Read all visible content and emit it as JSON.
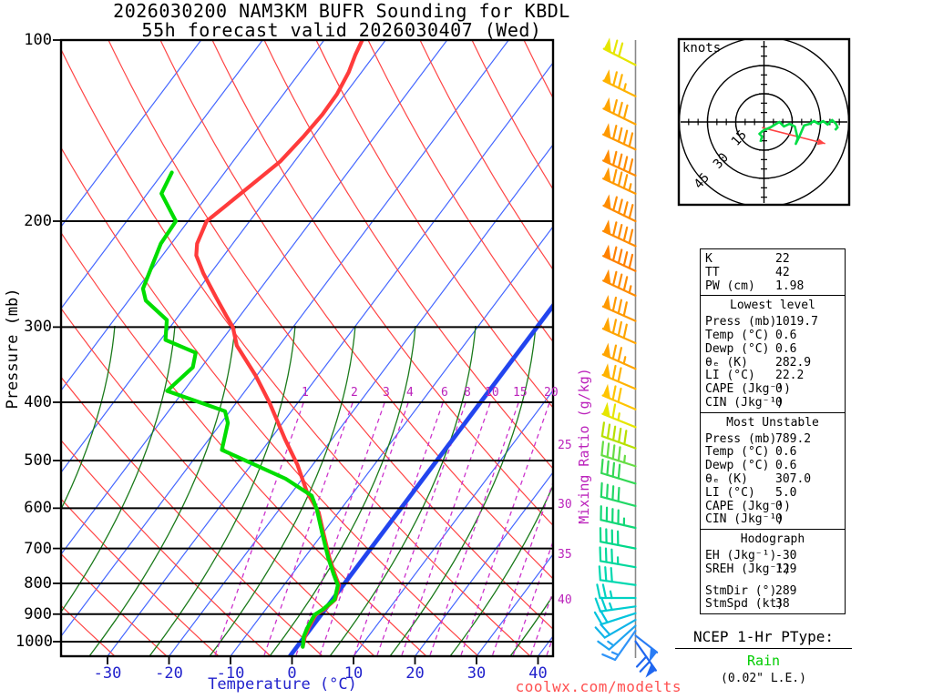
{
  "title": {
    "line1": "2026030200 NAM3KM BUFR Sounding for KBDL",
    "line2": "55h forecast valid 2026030407 (Wed)"
  },
  "watermark": "coolwx.com/modelts",
  "axes": {
    "pressure_label": "Pressure (mb)",
    "pressure_ticks": [
      100,
      200,
      300,
      400,
      500,
      600,
      700,
      800,
      900,
      1000
    ],
    "temp_label": "Temperature (°C)",
    "temp_ticks": [
      -30,
      -20,
      -10,
      0,
      10,
      20,
      30,
      40
    ],
    "mixing_label": "Mixing Ratio (g/kg)",
    "mixing_ticks_top": [
      1,
      2,
      3,
      4,
      6,
      8,
      10,
      15,
      20
    ],
    "mixing_ticks_right": [
      25,
      30,
      35,
      40
    ]
  },
  "colors": {
    "isotherm": "#4466ff",
    "isotherm_zero": "#2244ee",
    "dry_adiabat": "#ff4444",
    "moist_adiabat": "#1a7a1a",
    "mixing_ratio": "#cc33cc",
    "pressure_line": "#000000",
    "temperature_trace": "#ff3b3b",
    "dewpoint_trace": "#00dd00",
    "barb_staff": "#888888",
    "hodograph_trace": "#00dd44",
    "storm_motion_arrow": "#ff4444",
    "axis_text_blue": "#2222cc",
    "magenta_text": "#bb22bb",
    "watermark_red": "#ff5050",
    "ptype_green": "#00cc00"
  },
  "chart_data": {
    "type": "line",
    "variant": "skew-t-log-p sounding",
    "pressure_range_mb": [
      100,
      1050
    ],
    "temperature_range_c": [
      -30,
      40
    ],
    "series": [
      {
        "name": "temperature",
        "units": [
          "mb",
          "C"
        ],
        "points": [
          [
            100,
            -63.8
          ],
          [
            106,
            -63.1
          ],
          [
            113,
            -62.1
          ],
          [
            123,
            -61.3
          ],
          [
            133,
            -61.2
          ],
          [
            145,
            -61.6
          ],
          [
            159,
            -62.3
          ],
          [
            172,
            -63.9
          ],
          [
            189,
            -65.8
          ],
          [
            200,
            -67.0
          ],
          [
            218,
            -65.8
          ],
          [
            228,
            -64.5
          ],
          [
            244,
            -61.2
          ],
          [
            268,
            -56.1
          ],
          [
            287,
            -52.3
          ],
          [
            300,
            -49.8
          ],
          [
            322,
            -46.9
          ],
          [
            361,
            -40.2
          ],
          [
            400,
            -34.7
          ],
          [
            461,
            -27.6
          ],
          [
            508,
            -22.5
          ],
          [
            563,
            -17.7
          ],
          [
            610,
            -13.2
          ],
          [
            662,
            -9.8
          ],
          [
            726,
            -5.9
          ],
          [
            775,
            -2.9
          ],
          [
            806,
            -1.0
          ],
          [
            851,
            0.1
          ],
          [
            884,
            -0.5
          ],
          [
            902,
            -1.2
          ],
          [
            946,
            -0.8
          ],
          [
            981,
            -0.3
          ],
          [
            1019.7,
            0.6
          ]
        ]
      },
      {
        "name": "dewpoint",
        "units": [
          "mb",
          "C"
        ],
        "points": [
          [
            166,
            -78.6
          ],
          [
            180,
            -77.7
          ],
          [
            200,
            -72.0
          ],
          [
            218,
            -71.7
          ],
          [
            259,
            -69.1
          ],
          [
            271,
            -67.2
          ],
          [
            292,
            -61.4
          ],
          [
            315,
            -59.2
          ],
          [
            331,
            -52.7
          ],
          [
            350,
            -51.4
          ],
          [
            383,
            -52.7
          ],
          [
            414,
            -40.8
          ],
          [
            433,
            -38.9
          ],
          [
            480,
            -36.6
          ],
          [
            503,
            -30.7
          ],
          [
            536,
            -22.7
          ],
          [
            572,
            -16.4
          ],
          [
            604,
            -13.8
          ],
          [
            610,
            -13.4
          ],
          [
            662,
            -10.0
          ],
          [
            726,
            -6.1
          ],
          [
            775,
            -3.1
          ],
          [
            806,
            -1.2
          ],
          [
            851,
            0.0
          ],
          [
            884,
            -0.7
          ],
          [
            902,
            -1.4
          ],
          [
            946,
            -1.0
          ],
          [
            981,
            -0.5
          ],
          [
            1019.7,
            0.6
          ]
        ]
      }
    ],
    "wind_barbs": [
      {
        "p": 110,
        "ang": 207,
        "pen": 1,
        "full": 2,
        "half": 0,
        "color": "#e6e600"
      },
      {
        "p": 124,
        "ang": 206,
        "pen": 1,
        "full": 2,
        "half": 1,
        "color": "#ffb300"
      },
      {
        "p": 138,
        "ang": 206,
        "pen": 1,
        "full": 3,
        "half": 0,
        "color": "#ffa500"
      },
      {
        "p": 152,
        "ang": 205,
        "pen": 1,
        "full": 4,
        "half": 0,
        "color": "#ff9900"
      },
      {
        "p": 168,
        "ang": 205,
        "pen": 1,
        "full": 4,
        "half": 0,
        "color": "#ff8c00"
      },
      {
        "p": 180,
        "ang": 205,
        "pen": 1,
        "full": 3,
        "half": 1,
        "color": "#ff9900"
      },
      {
        "p": 200,
        "ang": 206,
        "pen": 1,
        "full": 4,
        "half": 0,
        "color": "#ff8c00"
      },
      {
        "p": 220,
        "ang": 205,
        "pen": 1,
        "full": 4,
        "half": 0,
        "color": "#ff8c00"
      },
      {
        "p": 242,
        "ang": 205,
        "pen": 1,
        "full": 4,
        "half": 0,
        "color": "#ff8000"
      },
      {
        "p": 266,
        "ang": 205,
        "pen": 1,
        "full": 3,
        "half": 1,
        "color": "#ff8c00"
      },
      {
        "p": 293,
        "ang": 204,
        "pen": 1,
        "full": 3,
        "half": 0,
        "color": "#ff9900"
      },
      {
        "p": 319,
        "ang": 204,
        "pen": 1,
        "full": 3,
        "half": 0,
        "color": "#ffa500"
      },
      {
        "p": 352,
        "ang": 204,
        "pen": 1,
        "full": 2,
        "half": 1,
        "color": "#ffa500"
      },
      {
        "p": 380,
        "ang": 203,
        "pen": 1,
        "full": 2,
        "half": 0,
        "color": "#ffb300"
      },
      {
        "p": 411,
        "ang": 203,
        "pen": 1,
        "full": 2,
        "half": 0,
        "color": "#ffc400"
      },
      {
        "p": 440,
        "ang": 202,
        "pen": 1,
        "full": 1,
        "half": 1,
        "color": "#e6e600"
      },
      {
        "p": 477,
        "ang": 200,
        "pen": 0,
        "full": 5,
        "half": 0,
        "color": "#b8e000"
      },
      {
        "p": 511,
        "ang": 198,
        "pen": 0,
        "full": 4,
        "half": 1,
        "color": "#66dd44"
      },
      {
        "p": 546,
        "ang": 197,
        "pen": 0,
        "full": 4,
        "half": 0,
        "color": "#33d855"
      },
      {
        "p": 595,
        "ang": 195,
        "pen": 0,
        "full": 4,
        "half": 0,
        "color": "#22d866"
      },
      {
        "p": 647,
        "ang": 193,
        "pen": 0,
        "full": 4,
        "half": 1,
        "color": "#11d877"
      },
      {
        "p": 700,
        "ang": 191,
        "pen": 0,
        "full": 4,
        "half": 0,
        "color": "#00d88a"
      },
      {
        "p": 752,
        "ang": 190,
        "pen": 0,
        "full": 3,
        "half": 1,
        "color": "#00d89c"
      },
      {
        "p": 805,
        "ang": 188,
        "pen": 0,
        "full": 3,
        "half": 0,
        "color": "#00d8b0"
      },
      {
        "p": 846,
        "ang": 180,
        "pen": 0,
        "full": 2,
        "half": 1,
        "color": "#00d2c2"
      },
      {
        "p": 874,
        "ang": 172,
        "pen": 0,
        "full": 2,
        "half": 1,
        "color": "#00ccd0"
      },
      {
        "p": 897,
        "ang": 162,
        "pen": 0,
        "full": 2,
        "half": 0,
        "color": "#00c4dd"
      },
      {
        "p": 920,
        "ang": 150,
        "pen": 0,
        "full": 2,
        "half": 0,
        "color": "#10b4e8"
      },
      {
        "p": 941,
        "ang": 138,
        "pen": 0,
        "full": 1,
        "half": 1,
        "color": "#20a4f0"
      },
      {
        "p": 959,
        "ang": 125,
        "pen": 0,
        "full": 1,
        "half": 1,
        "color": "#3094f8"
      },
      {
        "p": 977,
        "ang": 38,
        "pen": 1,
        "full": 0,
        "half": 0,
        "color": "#2a7df5"
      },
      {
        "p": 999,
        "ang": 55,
        "pen": 1,
        "full": 2,
        "half": 0,
        "color": "#1f66f0"
      }
    ],
    "hodograph": {
      "unit_label": "knots",
      "rings_kt": [
        15,
        30,
        45
      ],
      "trace_uv_kt": [
        [
          -1.9,
          -10.6
        ],
        [
          -1.0,
          -7.7
        ],
        [
          -2.4,
          -6.3
        ],
        [
          0,
          -4.3
        ],
        [
          3.4,
          -2.9
        ],
        [
          5.8,
          -1.4
        ],
        [
          8.2,
          0
        ],
        [
          10.6,
          -2.4
        ],
        [
          13.5,
          -1.0
        ],
        [
          16.4,
          -2.4
        ],
        [
          17.9,
          -8.7
        ],
        [
          16.9,
          -11.6
        ],
        [
          18.8,
          -7.7
        ],
        [
          21.3,
          -1.9
        ],
        [
          24.2,
          -1.0
        ],
        [
          26.6,
          0.5
        ],
        [
          29.0,
          -1.0
        ],
        [
          31.4,
          0.5
        ],
        [
          33.8,
          -1.4
        ],
        [
          36.2,
          1.0
        ],
        [
          38.2,
          -1.0
        ],
        [
          39.1,
          -2.9
        ],
        [
          37.7,
          -4.3
        ]
      ],
      "storm_motion_uv_kt": [
        [
          -1.0,
          -3.0
        ],
        [
          32.5,
          -11.5
        ]
      ]
    }
  },
  "stats": {
    "indices": [
      {
        "label": "K",
        "value": "22"
      },
      {
        "label": "TT",
        "value": "42"
      },
      {
        "label": "PW (cm)",
        "value": "1.98"
      }
    ],
    "lowest_level": {
      "header": "Lowest level",
      "rows": [
        {
          "label": "Press (mb)",
          "value": "1019.7"
        },
        {
          "label": "Temp (°C)",
          "value": "0.6"
        },
        {
          "label": "Dewp (°C)",
          "value": "0.6"
        },
        {
          "label": "θₑ (K)",
          "value": "282.9"
        },
        {
          "label": "LI (°C)",
          "value": "22.2"
        },
        {
          "label": "CAPE (Jkg⁻¹)",
          "value": "0"
        },
        {
          "label": "CIN (Jkg⁻¹)",
          "value": "0"
        }
      ]
    },
    "most_unstable": {
      "header": "Most Unstable",
      "rows": [
        {
          "label": "Press (mb)",
          "value": "789.2"
        },
        {
          "label": "Temp (°C)",
          "value": "0.6"
        },
        {
          "label": "Dewp (°C)",
          "value": "0.6"
        },
        {
          "label": "θₑ (K)",
          "value": "307.0"
        },
        {
          "label": "LI (°C)",
          "value": "5.0"
        },
        {
          "label": "CAPE (Jkg⁻¹)",
          "value": "0"
        },
        {
          "label": "CIN (Jkg⁻¹)",
          "value": "0"
        }
      ]
    },
    "hodograph_stats": {
      "header": "Hodograph",
      "rows_a": [
        {
          "label": "EH (Jkg⁻¹)",
          "value": "-30"
        },
        {
          "label": "SREH (Jkg⁻¹)",
          "value": "129"
        }
      ],
      "rows_b": [
        {
          "label": "StmDir (°)",
          "value": "289"
        },
        {
          "label": "StmSpd (kt)",
          "value": "38"
        }
      ]
    }
  },
  "ptype": {
    "title": "NCEP 1-Hr PType:",
    "value": "Rain",
    "extra": "(0.02\" L.E.)"
  }
}
